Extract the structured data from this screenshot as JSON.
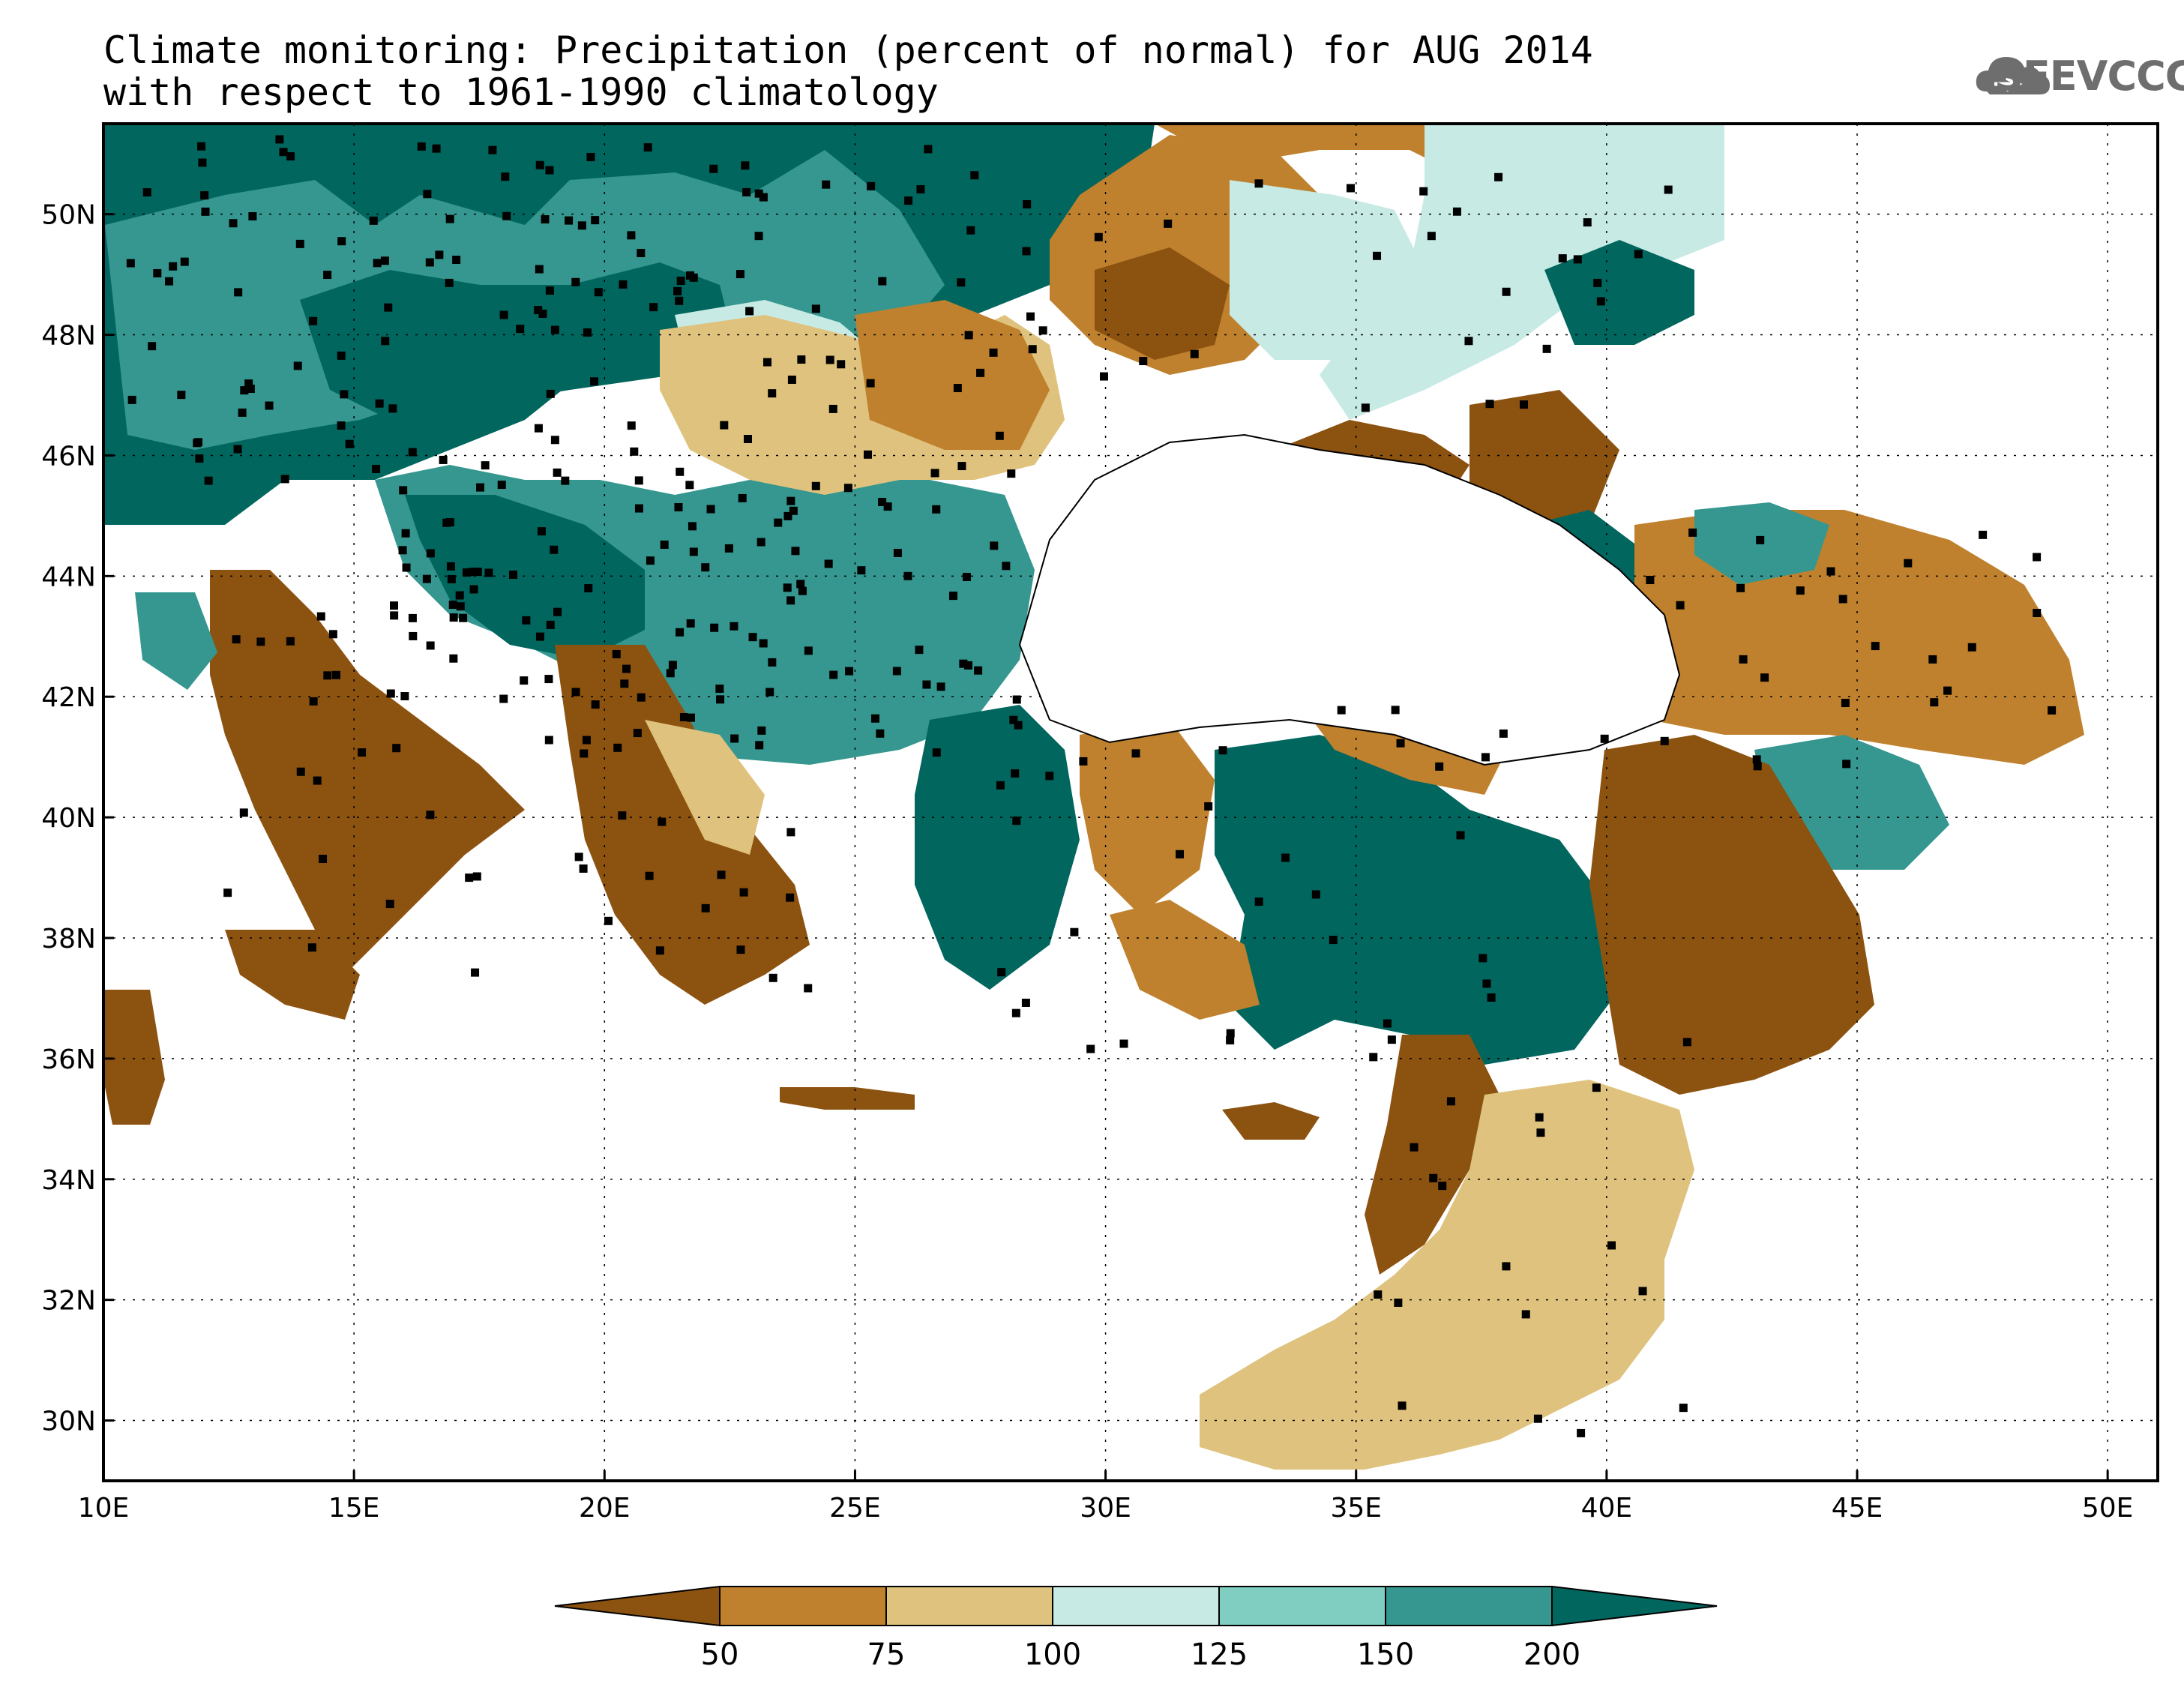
{
  "title": {
    "line1": "Climate monitoring: Precipitation (percent of normal) for AUG 2014",
    "line2": "with respect to 1961-1990 climatology"
  },
  "logo": {
    "text": "SEEVCCC",
    "icon": "cloud-icon"
  },
  "map": {
    "lon_range": [
      10,
      51
    ],
    "lat_range": [
      29,
      51.5
    ],
    "x_ticks": [
      "10E",
      "15E",
      "20E",
      "25E",
      "30E",
      "35E",
      "40E",
      "45E",
      "50E"
    ],
    "y_ticks": [
      "50N",
      "48N",
      "46N",
      "44N",
      "42N",
      "40N",
      "38N",
      "36N",
      "34N",
      "32N",
      "30N"
    ]
  },
  "colorbar": {
    "labels": [
      "50",
      "75",
      "100",
      "125",
      "150",
      "200"
    ],
    "colors": [
      "#8c5210",
      "#bf812d",
      "#dfc27d",
      "#c7eae5",
      "#80cdc1",
      "#35978f",
      "#01665e"
    ]
  }
}
